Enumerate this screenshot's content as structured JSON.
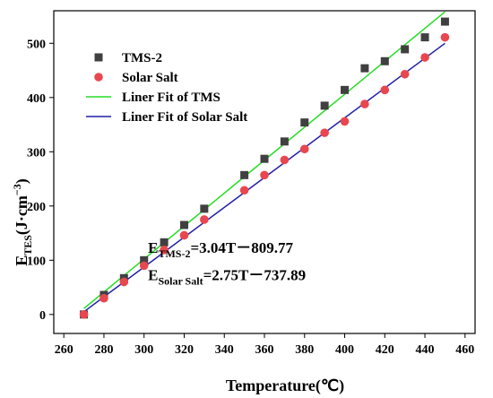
{
  "chart_data": {
    "type": "scatter",
    "xlabel": "Temperature(℃)",
    "ylabel": {
      "main": "E",
      "sub": "TES",
      "unit": "(J·cm",
      "sup": "−3",
      "close": ")"
    },
    "xlim": [
      255,
      465
    ],
    "ylim": [
      -35,
      560
    ],
    "xticks": [
      260,
      280,
      300,
      320,
      340,
      360,
      380,
      400,
      420,
      440,
      460
    ],
    "yticks": [
      0,
      100,
      200,
      300,
      400,
      500
    ],
    "grid": false,
    "legend_position": "top-left",
    "series": [
      {
        "name": "TMS-2",
        "kind": "scatter",
        "marker": "square",
        "color": "#404040",
        "x": [
          270,
          280,
          290,
          300,
          310,
          320,
          330,
          350,
          360,
          370,
          380,
          390,
          400,
          410,
          420,
          430,
          440,
          450
        ],
        "y": [
          0,
          36,
          67,
          100,
          133,
          165,
          195,
          257,
          287,
          319,
          354,
          385,
          414,
          454,
          467,
          489,
          511,
          540
        ]
      },
      {
        "name": "Solar Salt",
        "kind": "scatter",
        "marker": "circle",
        "color": "#e8474f",
        "x": [
          270,
          280,
          290,
          300,
          310,
          320,
          330,
          350,
          360,
          370,
          380,
          390,
          400,
          410,
          420,
          430,
          440,
          450
        ],
        "y": [
          0,
          30,
          60,
          90,
          119,
          146,
          175,
          229,
          257,
          285,
          305,
          335,
          356,
          388,
          414,
          443,
          474,
          511
        ]
      },
      {
        "name": "Liner Fit of TMS",
        "kind": "line",
        "color": "#22dd22",
        "x": [
          270,
          450
        ],
        "y": [
          11,
          558
        ]
      },
      {
        "name": "Liner Fit of Solar Salt",
        "kind": "line",
        "color": "#1f1fa8",
        "x": [
          270,
          450
        ],
        "y": [
          5,
          500
        ]
      }
    ],
    "annotations": [
      {
        "main": "E",
        "sub": "TMS-2",
        "text": "=3.04T－809.77",
        "x": 310,
        "y": 130
      },
      {
        "main": "E",
        "sub": "Solar Salt",
        "text": "=2.75T－737.89",
        "x": 310,
        "y": 80
      }
    ]
  }
}
